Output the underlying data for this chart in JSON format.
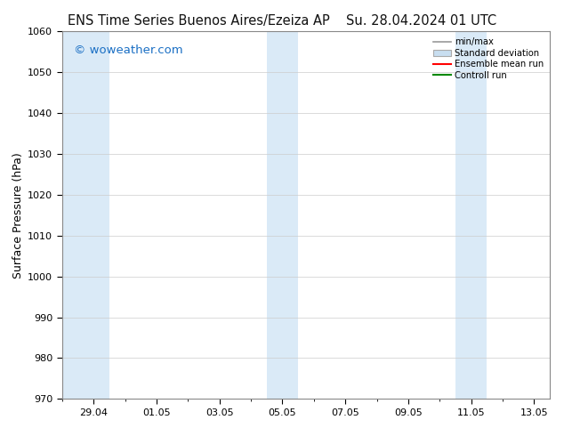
{
  "title_left": "ENS Time Series Buenos Aires/Ezeiza AP",
  "title_right": "Su. 28.04.2024 01 UTC",
  "ylabel": "Surface Pressure (hPa)",
  "ylim": [
    970,
    1060
  ],
  "yticks": [
    970,
    980,
    990,
    1000,
    1010,
    1020,
    1030,
    1040,
    1050,
    1060
  ],
  "xtick_labels": [
    "29.04",
    "01.05",
    "03.05",
    "05.05",
    "07.05",
    "09.05",
    "11.05",
    "13.05"
  ],
  "watermark": "© woweather.com",
  "watermark_color": "#1a6fc4",
  "bg_color": "#ffffff",
  "plot_bg_color": "#ffffff",
  "shaded_band_color": "#daeaf7",
  "legend_labels": [
    "min/max",
    "Standard deviation",
    "Ensemble mean run",
    "Controll run"
  ],
  "title_fontsize": 10.5,
  "axis_label_fontsize": 9,
  "tick_fontsize": 8,
  "watermark_fontsize": 9.5
}
